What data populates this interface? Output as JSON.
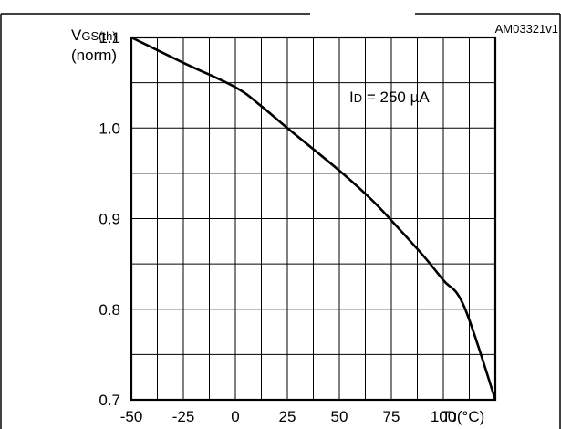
{
  "figure_id": "AM03321v1",
  "chart_data": {
    "type": "line",
    "ylabel_main": "V",
    "ylabel_sub": "GS(th)",
    "ylabel_unit": "(norm)",
    "xlabel_main": "T",
    "xlabel_sub": "J",
    "xlabel_unit": "(°C)",
    "annotation": {
      "main": "I",
      "sub": "D",
      "rest": " = 250 µA"
    },
    "xlim": [
      -50,
      125
    ],
    "ylim": [
      0.7,
      1.1
    ],
    "x_ticks": [
      -50,
      -25,
      0,
      25,
      50,
      75,
      100
    ],
    "x_tick_labels": [
      "-50",
      "-25",
      "0",
      "25",
      "50",
      "75",
      "100"
    ],
    "y_ticks": [
      0.7,
      0.8,
      0.9,
      1.0,
      1.1
    ],
    "y_tick_labels": [
      "0.7",
      "0.8",
      "0.9",
      "1.0",
      "1.1"
    ],
    "grid": true,
    "series": [
      {
        "x": [
          -50,
          -25,
          0,
          12,
          25,
          50,
          65,
          75,
          90,
          100,
          110,
          125
        ],
        "y": [
          1.1,
          1.072,
          1.045,
          1.025,
          1.0,
          0.953,
          0.922,
          0.898,
          0.86,
          0.832,
          0.803,
          0.7
        ]
      }
    ]
  }
}
